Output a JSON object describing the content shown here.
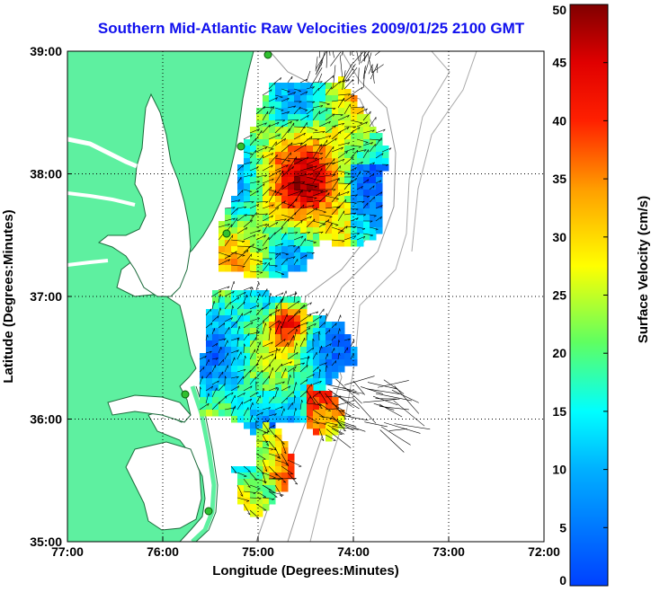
{
  "title": "Southern Mid-Atlantic Raw Velocities 2009/01/25 2100 GMT",
  "map": {
    "xlabel": "Longitude (Degrees:Minutes)",
    "ylabel": "Latitude (Degrees:Minutes)",
    "x_ticks": [
      "77:00",
      "76:00",
      "75:00",
      "74:00",
      "73:00",
      "72:00"
    ],
    "y_ticks": [
      "39:00",
      "38:00",
      "37:00",
      "36:00",
      "35:00"
    ],
    "lon_range": [
      -77,
      -72
    ],
    "lat_range": [
      35,
      39
    ],
    "grid": "dotted",
    "land_color": "#5ef0a0",
    "coast_color": "#1a6a3a",
    "vector_color": "#000000",
    "stations": 5
  },
  "colorbar": {
    "label": "Surface Velocity (cm/s)",
    "ticks": [
      "0",
      "5",
      "10",
      "15",
      "20",
      "25",
      "30",
      "35",
      "40",
      "45",
      "50"
    ],
    "range": [
      0,
      50
    ],
    "colormap": [
      "#0040ff",
      "#00ffff",
      "#60ff40",
      "#ffff00",
      "#ff8000",
      "#ff0000",
      "#800000"
    ]
  }
}
